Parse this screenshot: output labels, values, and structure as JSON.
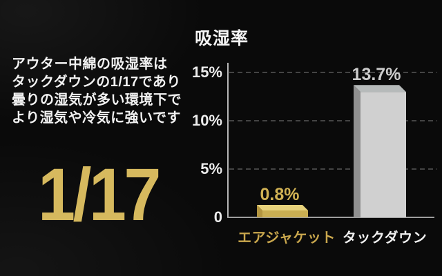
{
  "left_panel": {
    "description_lines": [
      "アウター中綿の吸湿率は",
      "タックダウンの1/17であり",
      "曇りの湿気が多い環境下で",
      "より湿気や冷気に強いです"
    ],
    "ratio_text": "1/17"
  },
  "chart_data": {
    "type": "bar",
    "title": "吸湿率",
    "categories": [
      "エアジャケット",
      "タックダウン"
    ],
    "values": [
      0.8,
      13.7
    ],
    "value_labels": [
      "0.8%",
      "13.7%"
    ],
    "unit": "%",
    "ylim": [
      0,
      16
    ],
    "yticks": [
      {
        "value": 15,
        "label": "15%"
      },
      {
        "value": 10,
        "label": "10%"
      },
      {
        "value": 5,
        "label": "5%"
      },
      {
        "value": 0,
        "label": "0"
      }
    ],
    "grid": {
      "style": "dashed",
      "color": "#585858",
      "levels": [
        15,
        10,
        5
      ]
    },
    "legend": null,
    "bars_3d": true,
    "bar_face_colors": [
      {
        "front": "#c9ae52",
        "top": "#e7d27b",
        "side": "#b3953f"
      },
      {
        "front": "#d0d0d0",
        "top": "#b6baba",
        "side": "#909090"
      }
    ],
    "value_label_colors": [
      "#d1b254",
      "#cccccc"
    ],
    "category_label_colors": [
      "#c9a74d",
      "#f0f0f0"
    ],
    "axis_color": "#b8b8b8",
    "baseline_color": "#9e9e9e"
  },
  "colors": {
    "background": "#0a0a0a",
    "text": "#f2f2f2",
    "gold": "#d6b95e"
  }
}
